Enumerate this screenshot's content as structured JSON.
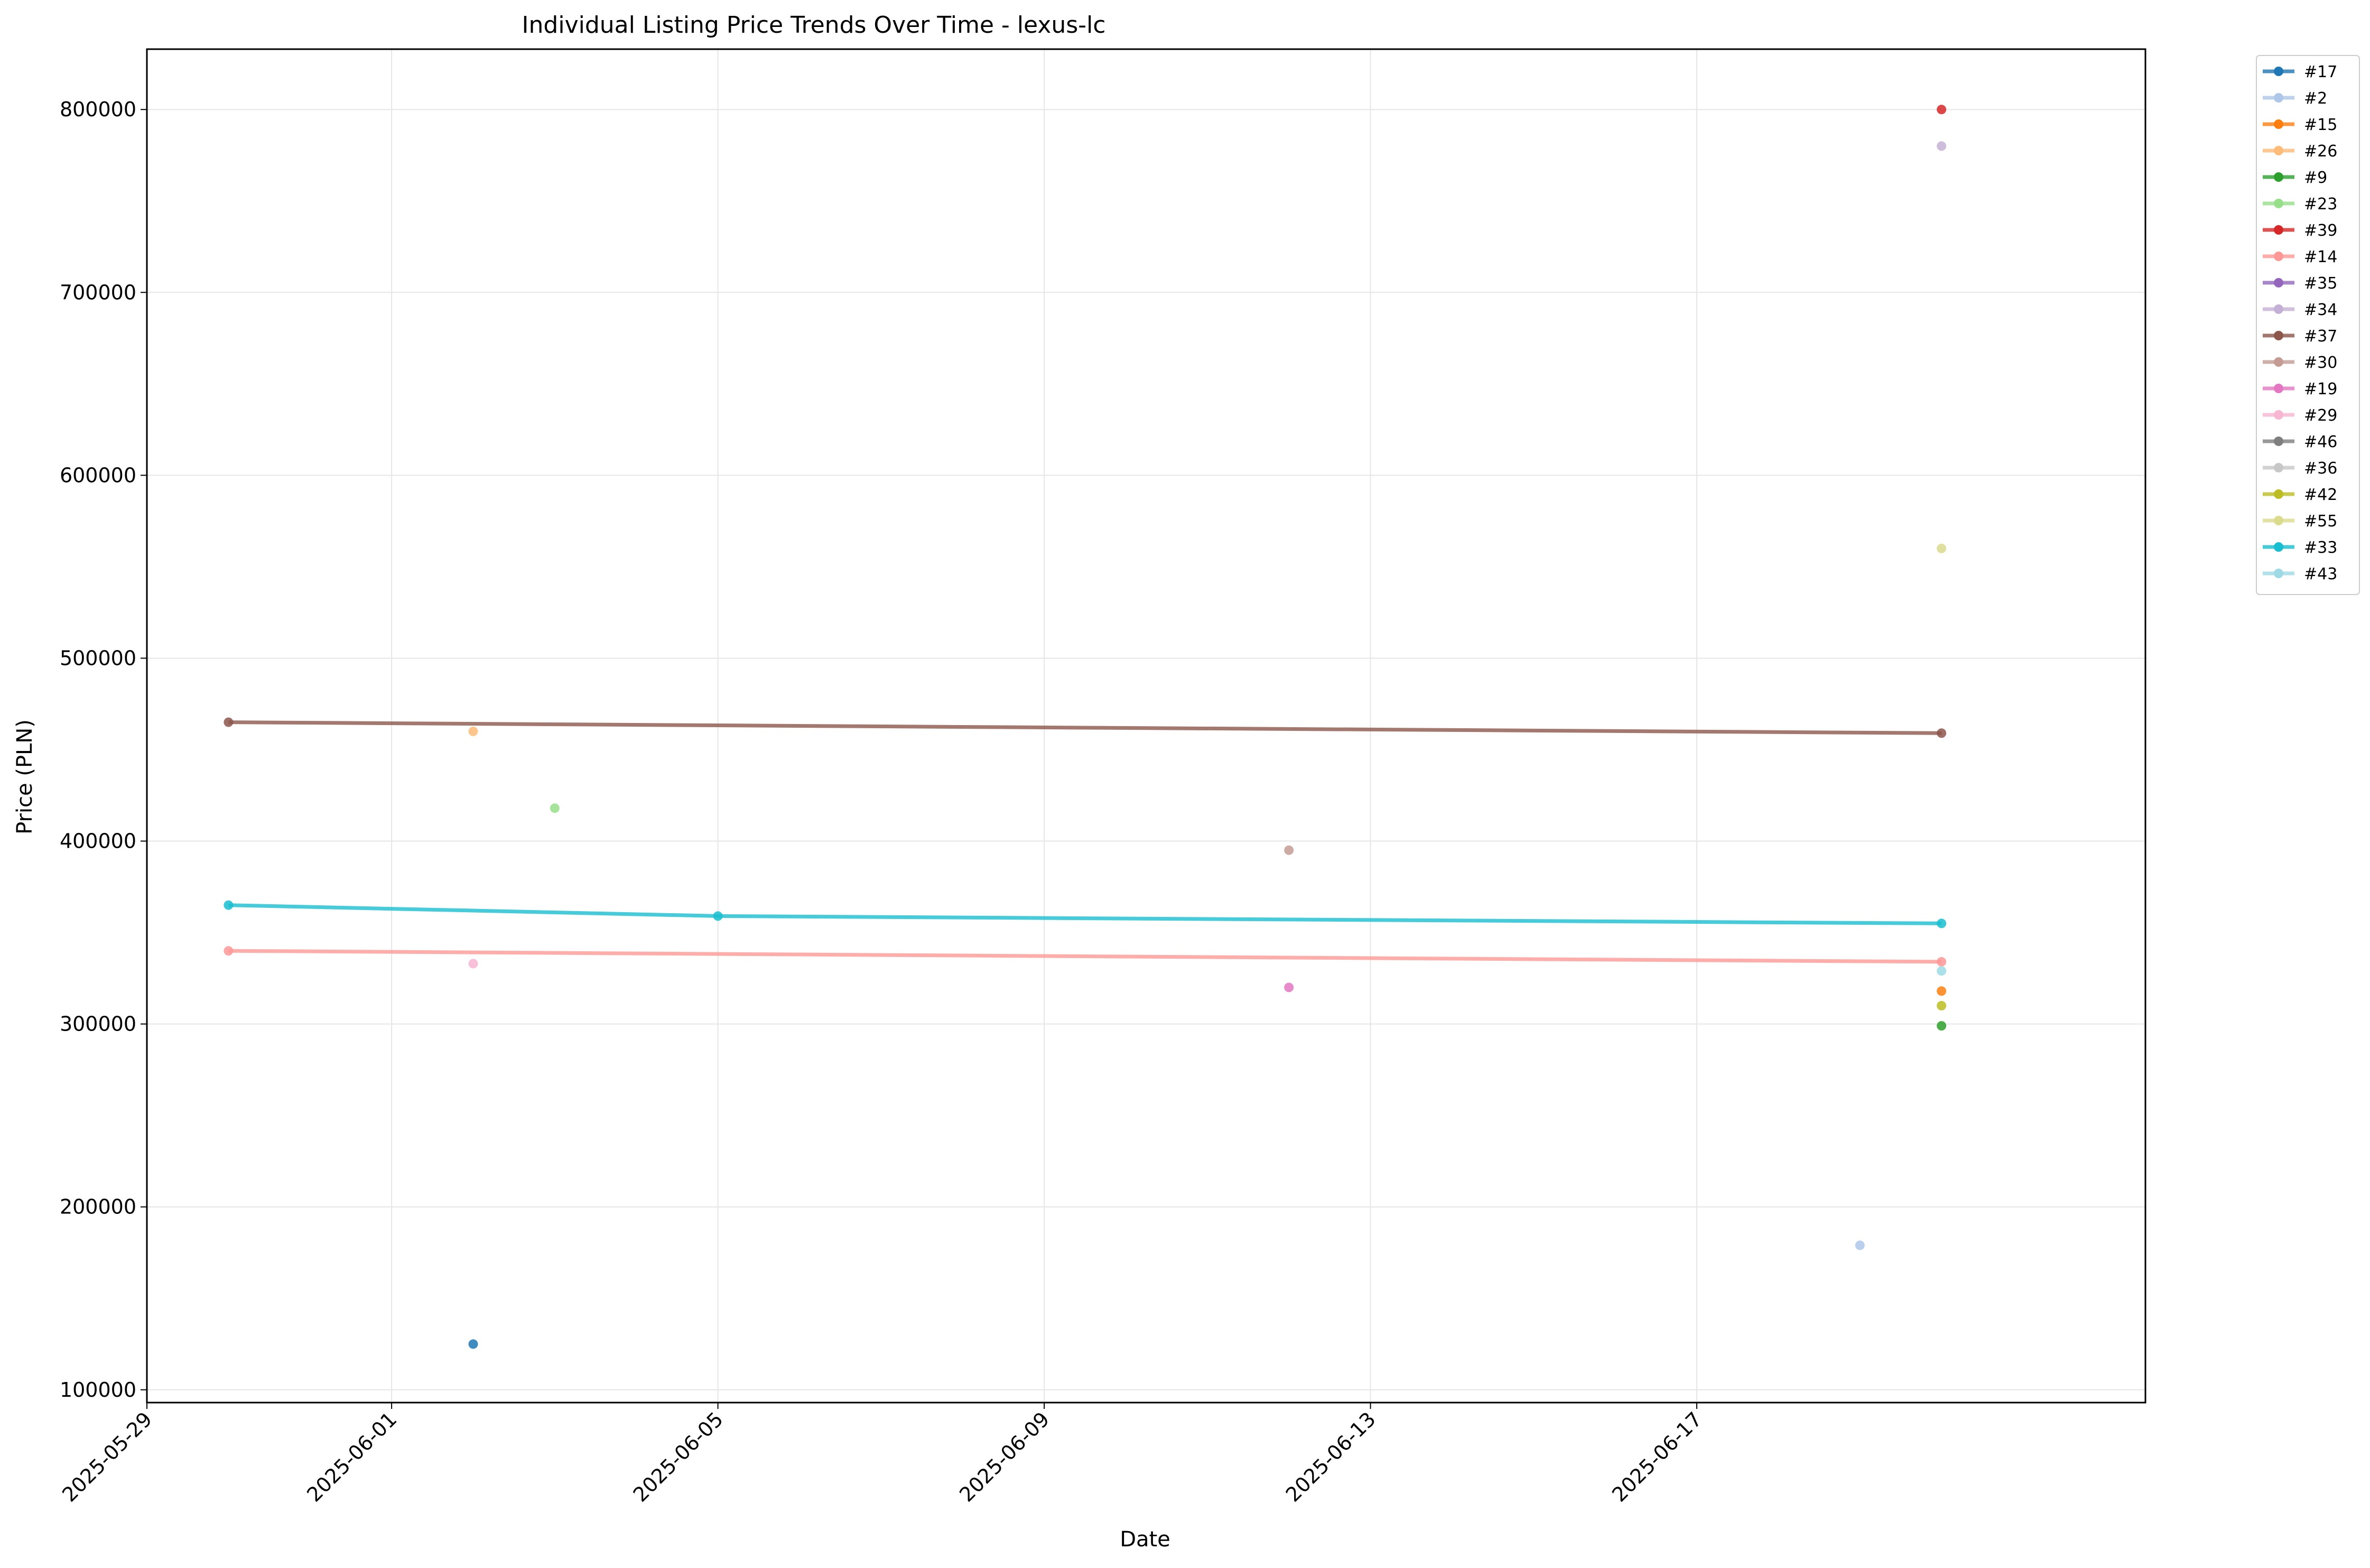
{
  "chart_data": {
    "type": "line",
    "title": "Individual Listing Price Trends Over Time - lexus-lc",
    "xlabel": "Date",
    "ylabel": "Price (PLN)",
    "x_ticks": [
      "2025-05-29",
      "2025-06-01",
      "2025-06-05",
      "2025-06-09",
      "2025-06-13",
      "2025-06-17"
    ],
    "y_ticks": [
      "100000",
      "200000",
      "300000",
      "400000",
      "500000",
      "600000",
      "700000",
      "800000"
    ],
    "xlim": [
      "2025-05-29",
      "2025-06-22"
    ],
    "ylim": [
      93000,
      833000
    ],
    "grid": true,
    "legend_position": "outside-top-right",
    "series": [
      {
        "name": "#17",
        "color": "#1f77b4",
        "points": [
          [
            "2025-06-02",
            125000
          ]
        ]
      },
      {
        "name": "#2",
        "color": "#aec7e8",
        "points": [
          [
            "2025-06-19",
            179000
          ]
        ]
      },
      {
        "name": "#15",
        "color": "#ff7f0e",
        "points": [
          [
            "2025-06-20",
            318000
          ]
        ]
      },
      {
        "name": "#26",
        "color": "#ffbb78",
        "points": [
          [
            "2025-06-02",
            460000
          ]
        ]
      },
      {
        "name": "#9",
        "color": "#2ca02c",
        "points": [
          [
            "2025-06-20",
            299000
          ]
        ]
      },
      {
        "name": "#23",
        "color": "#98df8a",
        "points": [
          [
            "2025-06-03",
            418000
          ]
        ]
      },
      {
        "name": "#39",
        "color": "#d62728",
        "points": [
          [
            "2025-06-20",
            800000
          ]
        ]
      },
      {
        "name": "#14",
        "color": "#ff9896",
        "points": [
          [
            "2025-05-30",
            340000
          ],
          [
            "2025-06-20",
            334000
          ]
        ]
      },
      {
        "name": "#35",
        "color": "#9467bd",
        "points": []
      },
      {
        "name": "#34",
        "color": "#c5b0d5",
        "points": [
          [
            "2025-06-20",
            780000
          ]
        ]
      },
      {
        "name": "#37",
        "color": "#8c564b",
        "points": [
          [
            "2025-05-30",
            465000
          ],
          [
            "2025-06-20",
            459000
          ]
        ]
      },
      {
        "name": "#30",
        "color": "#c49c94",
        "points": [
          [
            "2025-06-12",
            395000
          ]
        ]
      },
      {
        "name": "#19",
        "color": "#e377c2",
        "points": [
          [
            "2025-06-12",
            320000
          ]
        ]
      },
      {
        "name": "#29",
        "color": "#f7b6d2",
        "points": [
          [
            "2025-06-02",
            333000
          ]
        ]
      },
      {
        "name": "#46",
        "color": "#7f7f7f",
        "points": []
      },
      {
        "name": "#36",
        "color": "#c7c7c7",
        "points": []
      },
      {
        "name": "#42",
        "color": "#bcbd22",
        "points": [
          [
            "2025-06-20",
            310000
          ]
        ]
      },
      {
        "name": "#55",
        "color": "#dbdb8d",
        "points": [
          [
            "2025-06-20",
            560000
          ]
        ]
      },
      {
        "name": "#33",
        "color": "#17becf",
        "points": [
          [
            "2025-05-30",
            365000
          ],
          [
            "2025-06-05",
            359000
          ],
          [
            "2025-06-20",
            355000
          ]
        ]
      },
      {
        "name": "#43",
        "color": "#9edae5",
        "points": [
          [
            "2025-06-20",
            329000
          ]
        ]
      }
    ]
  }
}
